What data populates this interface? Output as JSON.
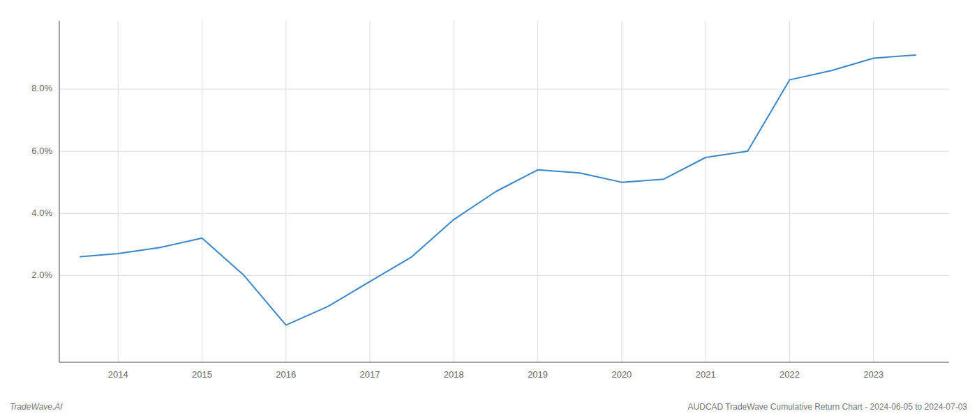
{
  "chart_data": {
    "type": "line",
    "x": [
      2013.55,
      2014.0,
      2014.5,
      2015.0,
      2015.5,
      2016.0,
      2016.5,
      2017.0,
      2017.5,
      2018.0,
      2018.5,
      2019.0,
      2019.5,
      2020.0,
      2020.5,
      2021.0,
      2021.25,
      2021.5,
      2022.0,
      2022.5,
      2023.0,
      2023.5
    ],
    "values": [
      0.026,
      0.027,
      0.029,
      0.032,
      0.02,
      0.004,
      0.01,
      0.018,
      0.026,
      0.038,
      0.047,
      0.054,
      0.053,
      0.05,
      0.051,
      0.058,
      0.059,
      0.06,
      0.083,
      0.086,
      0.09,
      0.091
    ],
    "color": "#3a86c8",
    "xlim": [
      2013.3,
      2023.9
    ],
    "xticks": [
      2014,
      2015,
      2016,
      2017,
      2018,
      2019,
      2020,
      2021,
      2022,
      2023
    ],
    "ylim": [
      -0.008,
      0.102
    ],
    "yticks": [
      {
        "value": 0.02,
        "label": "2.0%"
      },
      {
        "value": 0.04,
        "label": "4.0%"
      },
      {
        "value": 0.06,
        "label": "6.0%"
      },
      {
        "value": 0.08,
        "label": "8.0%"
      }
    ],
    "grid": true,
    "annotations": [
      "TradeWave.AI",
      "AUDCAD TradeWave Cumulative Return Chart - 2024-06-05 to 2024-07-03"
    ]
  }
}
